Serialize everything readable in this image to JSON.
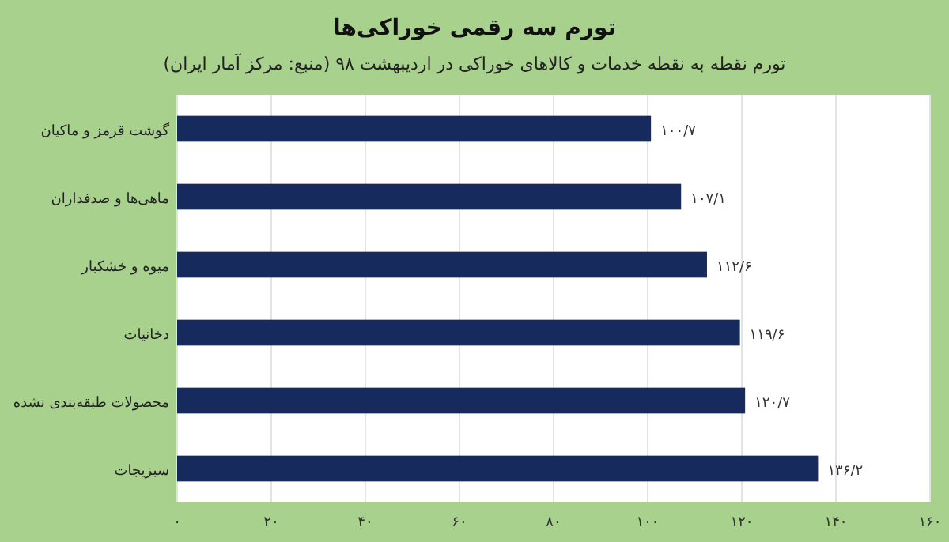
{
  "chart_data": {
    "type": "bar",
    "orientation": "horizontal",
    "title": "تورم سه رقمی خوراکی‌ها",
    "subtitle": "تورم نقطه به نقطه خدمات و کالاهای خوراکی در اردیبهشت ۹۸ (منبع: مرکز آمار ایران)",
    "categories": [
      "گوشت قرمز و ماکیان",
      "ماهی‌ها و صدفداران",
      "میوه و خشکبار",
      "دخانیات",
      "محصولات طبقه‌بندی نشده",
      "سبزیجات"
    ],
    "values": [
      100.7,
      107.1,
      112.6,
      119.6,
      120.7,
      136.2
    ],
    "value_labels": [
      "۱۰۰/۷",
      "۱۰۷/۱",
      "۱۱۲/۶",
      "۱۱۹/۶",
      "۱۲۰/۷",
      "۱۳۶/۲"
    ],
    "color": "#172a5e",
    "xlim": [
      0,
      160
    ],
    "xticks": [
      {
        "value": 0,
        "label": "۰"
      },
      {
        "value": 20,
        "label": "۲۰"
      },
      {
        "value": 40,
        "label": "۴۰"
      },
      {
        "value": 60,
        "label": "۶۰"
      },
      {
        "value": 80,
        "label": "۸۰"
      },
      {
        "value": 100,
        "label": "۱۰۰"
      },
      {
        "value": 120,
        "label": "۱۲۰"
      },
      {
        "value": 140,
        "label": "۱۴۰"
      },
      {
        "value": 160,
        "label": "۱۶۰"
      }
    ],
    "grid": "x"
  }
}
